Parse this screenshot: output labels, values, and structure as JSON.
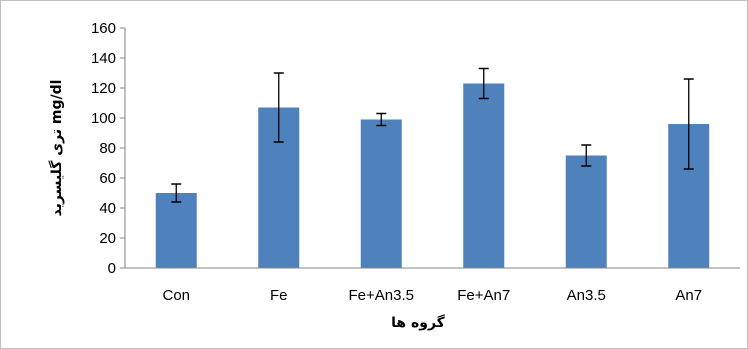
{
  "chart_data": {
    "type": "bar",
    "categories": [
      "Con",
      "Fe",
      "Fe+An3.5",
      "Fe+An7",
      "An3.5",
      "An7"
    ],
    "values": [
      50,
      107,
      99,
      123,
      75,
      96
    ],
    "errors": [
      6,
      23,
      4,
      10,
      7,
      30
    ],
    "title": "",
    "xlabel": "گروه ها",
    "ylabel": "تری گلیسرید mg/dl",
    "ylim": [
      0,
      160
    ],
    "yticks": [
      0,
      20,
      40,
      60,
      80,
      100,
      120,
      140,
      160
    ],
    "grid": false,
    "legend": "none",
    "bar_color": "#4f81bd",
    "error_color": "#000000"
  }
}
